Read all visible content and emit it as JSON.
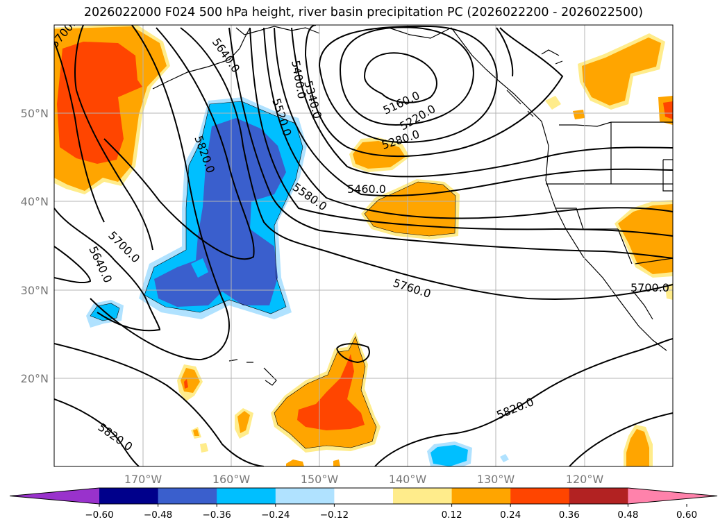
{
  "title": "2026022000 F024 500 hPa height, river basin precipitation PC (2026022200 - 2026022500)",
  "map": {
    "lat_labels": [
      "50°N",
      "40°N",
      "30°N",
      "20°N"
    ],
    "lon_labels": [
      "170°W",
      "160°W",
      "150°W",
      "140°W",
      "130°W",
      "120°W"
    ],
    "contour_labels": [
      "5700.0",
      "5640.0",
      "5820.0",
      "5520.0",
      "5400.0",
      "5340.0",
      "5160.0",
      "5220.0",
      "5280.0",
      "5460.0",
      "5580.0",
      "5700.0",
      "5640.0",
      "5760.0",
      "5700.0",
      "5820.0",
      "5820.0"
    ]
  },
  "colorbar": {
    "ticks": [
      "−0.60",
      "−0.48",
      "−0.36",
      "−0.24",
      "−0.12",
      "0.12",
      "0.24",
      "0.36",
      "0.48",
      "0.60"
    ],
    "colors": [
      "#9932cc",
      "#00008b",
      "#3a5fcd",
      "#00bfff",
      "#b0e2ff",
      "#ffffff",
      "#ffec8b",
      "#ffa500",
      "#ff4500",
      "#b22222",
      "#ff82ab"
    ]
  }
}
